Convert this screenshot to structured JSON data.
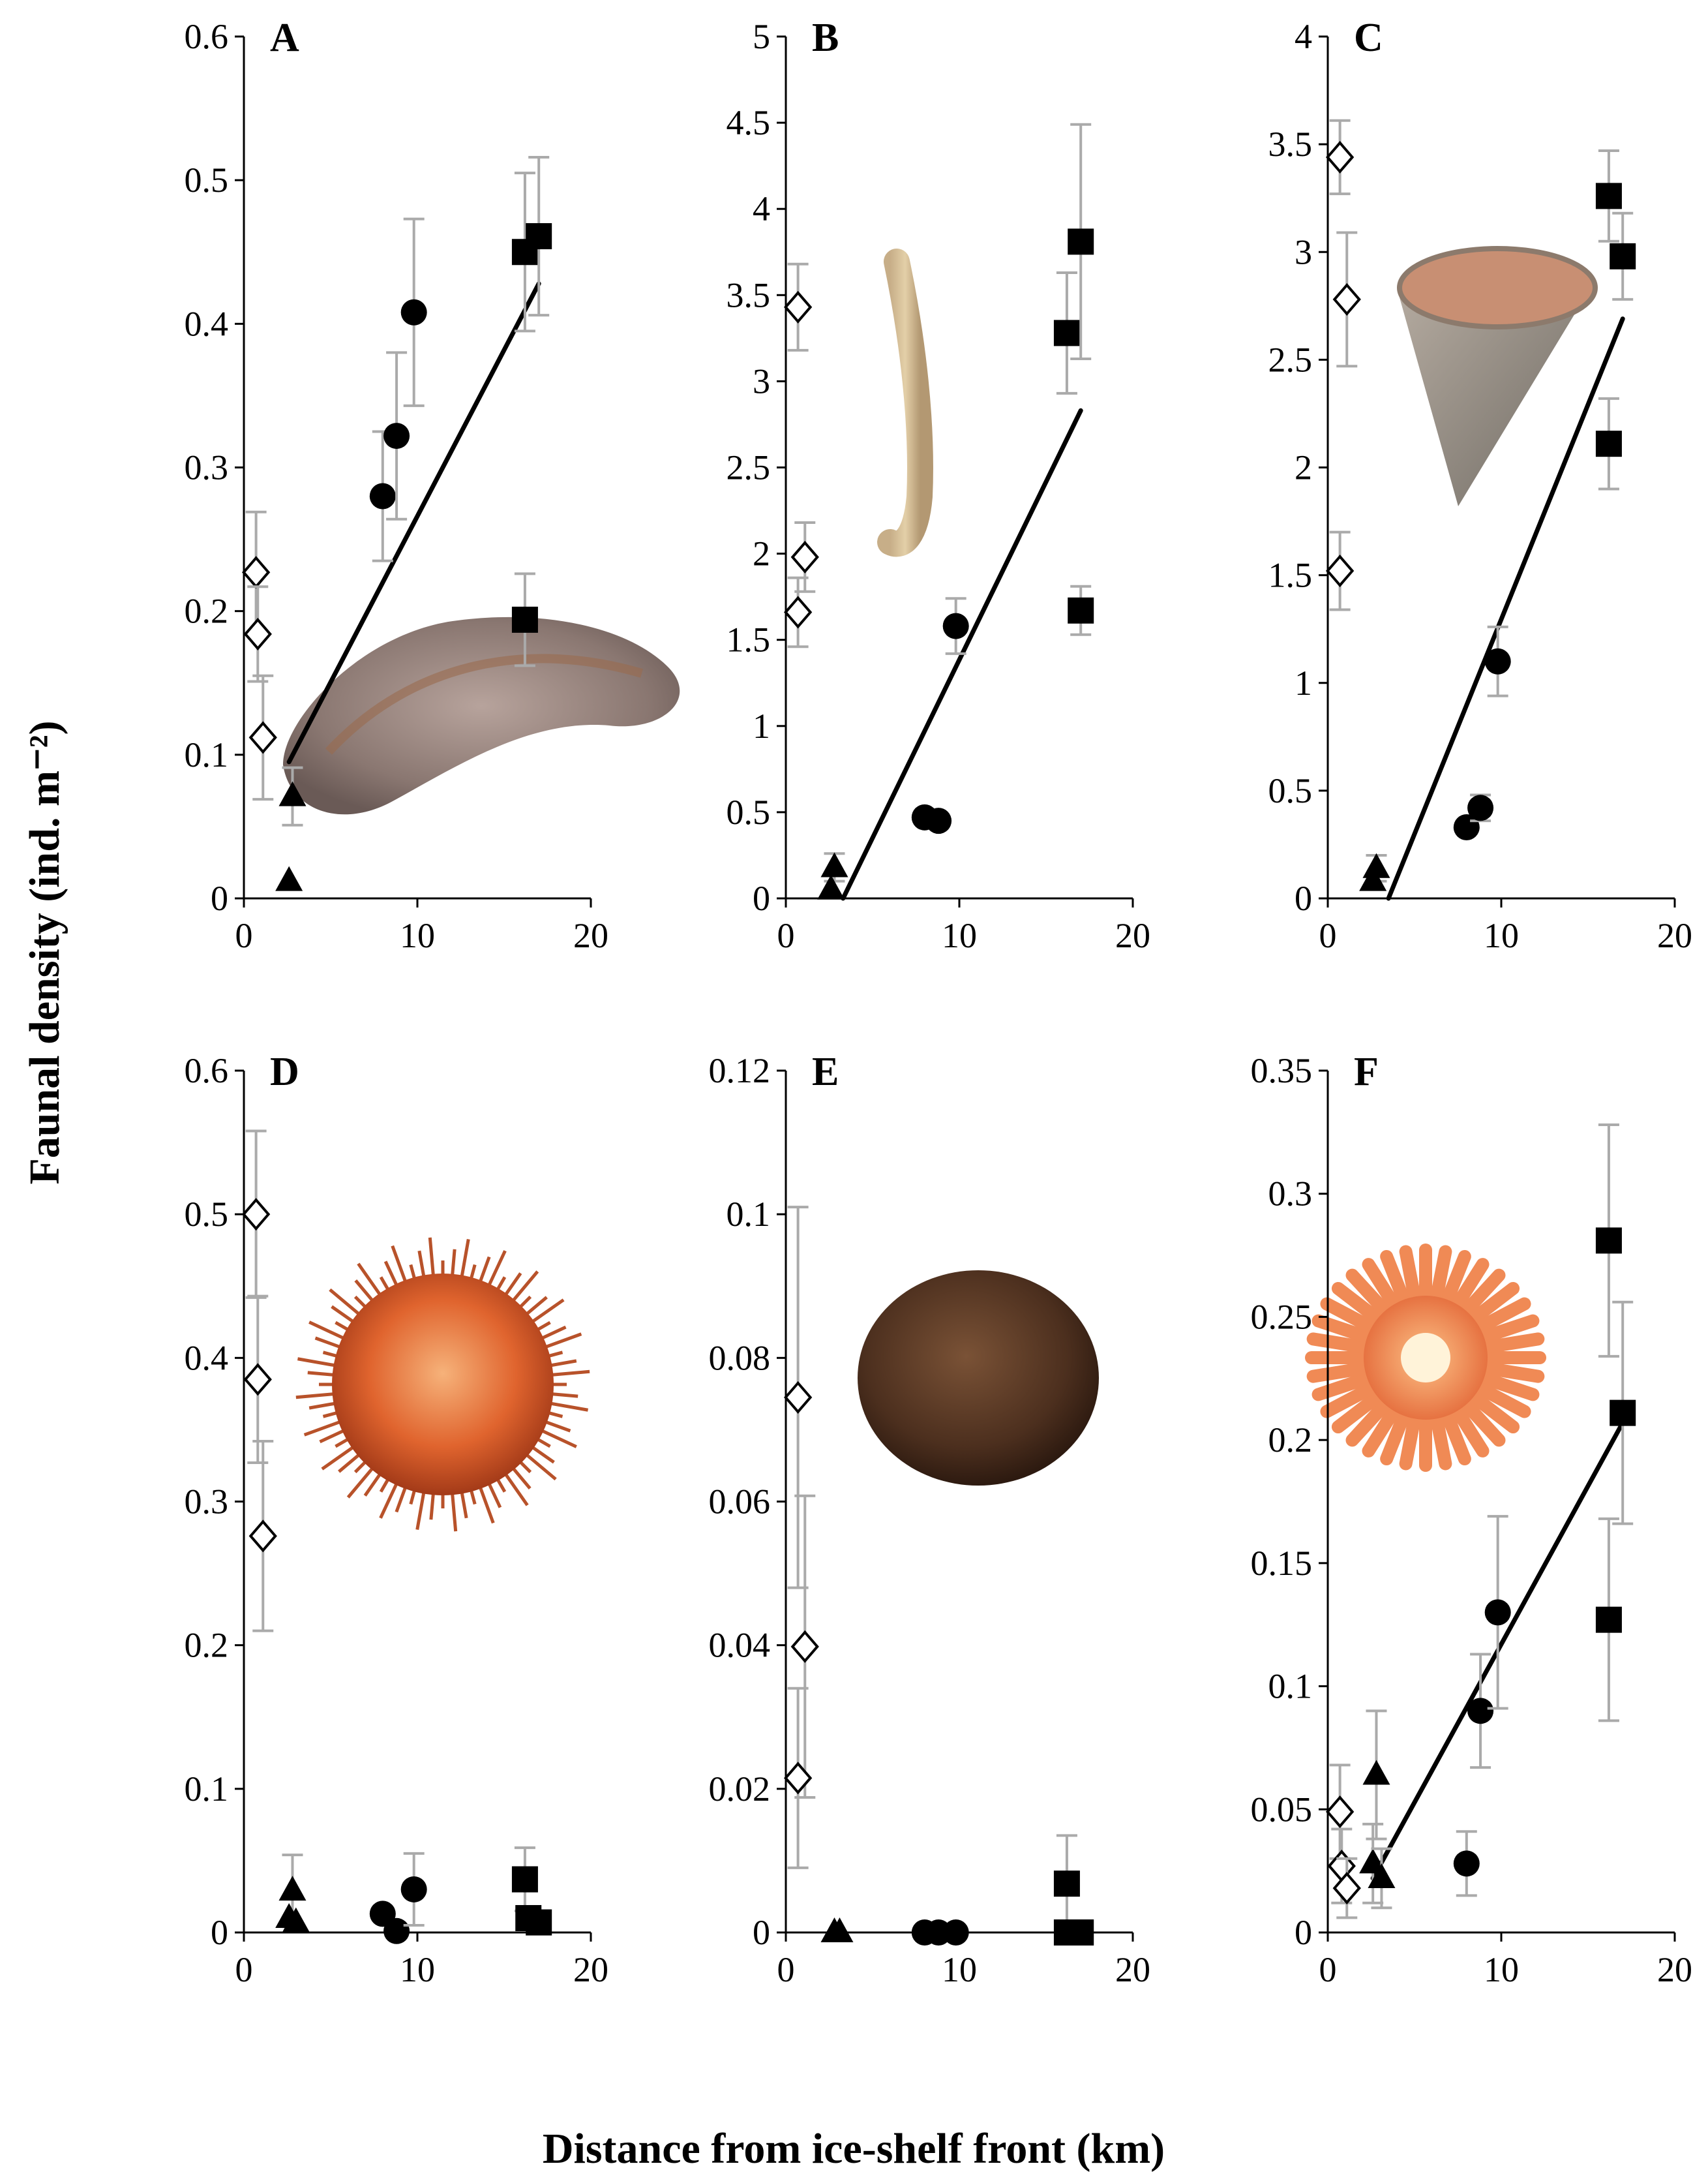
{
  "figure": {
    "ylabel": "Faunal density (ind. m⁻²)",
    "xlabel": "Distance from ice-shelf front (km)"
  },
  "chart_data": [
    {
      "panel": "A",
      "type": "scatter",
      "xlim": [
        0,
        20
      ],
      "xticks": [
        "0",
        "10",
        "20"
      ],
      "ylim": [
        0,
        0.6
      ],
      "yticks": [
        "0",
        "0.1",
        "0.2",
        "0.3",
        "0.4",
        "0.5",
        "0.6"
      ],
      "trendline": {
        "x": [
          2.6,
          17
        ],
        "y": [
          0.095,
          0.428
        ]
      },
      "image": "sea-cucumber",
      "series": [
        {
          "marker": "diamond-open",
          "points": [
            [
              0.7,
              0.227,
              0.042
            ],
            [
              0.8,
              0.184,
              0.033
            ],
            [
              1.1,
              0.112,
              0.043
            ]
          ]
        },
        {
          "marker": "triangle",
          "points": [
            [
              2.8,
              0.071,
              0.02
            ],
            [
              2.6,
              0.012,
              0.0
            ]
          ]
        },
        {
          "marker": "circle",
          "points": [
            [
              8.0,
              0.28,
              0.045
            ],
            [
              8.8,
              0.322,
              0.058
            ],
            [
              9.8,
              0.408,
              0.065
            ]
          ]
        },
        {
          "marker": "square",
          "points": [
            [
              16.2,
              0.45,
              0.055
            ],
            [
              17.0,
              0.461,
              0.055
            ],
            [
              16.2,
              0.194,
              0.032
            ]
          ]
        }
      ]
    },
    {
      "panel": "B",
      "type": "scatter",
      "xlim": [
        0,
        20
      ],
      "xticks": [
        "0",
        "10",
        "20"
      ],
      "ylim": [
        0,
        5
      ],
      "yticks": [
        "0",
        "0.5",
        "1",
        "1.5",
        "2",
        "2.5",
        "3",
        "3.5",
        "4",
        "4.5",
        "5"
      ],
      "trendline": {
        "x": [
          3.3,
          17
        ],
        "y": [
          0.0,
          2.83
        ]
      },
      "image": "tube-worm",
      "series": [
        {
          "marker": "diamond-open",
          "points": [
            [
              0.7,
              3.43,
              0.25
            ],
            [
              1.1,
              1.98,
              0.2
            ],
            [
              0.7,
              1.66,
              0.2
            ]
          ]
        },
        {
          "marker": "triangle",
          "points": [
            [
              2.8,
              0.18,
              0.08
            ],
            [
              2.6,
              0.05,
              0.0
            ]
          ]
        },
        {
          "marker": "circle",
          "points": [
            [
              8.0,
              0.47,
              0.0
            ],
            [
              8.8,
              0.45,
              0.0
            ],
            [
              9.8,
              1.58,
              0.16
            ]
          ]
        },
        {
          "marker": "square",
          "points": [
            [
              16.2,
              3.28,
              0.35
            ],
            [
              17.0,
              3.81,
              0.68
            ],
            [
              17.0,
              1.67,
              0.14
            ]
          ]
        }
      ]
    },
    {
      "panel": "C",
      "type": "scatter",
      "xlim": [
        0,
        20
      ],
      "xticks": [
        "0",
        "10",
        "20"
      ],
      "ylim": [
        0,
        4
      ],
      "yticks": [
        "0",
        "0.5",
        "1",
        "1.5",
        "2",
        "2.5",
        "3",
        "3.5",
        "4"
      ],
      "trendline": {
        "x": [
          3.5,
          17
        ],
        "y": [
          0.0,
          2.69
        ]
      },
      "image": "cup-coral",
      "series": [
        {
          "marker": "diamond-open",
          "points": [
            [
              0.7,
              3.44,
              0.17
            ],
            [
              1.1,
              2.78,
              0.31
            ],
            [
              0.7,
              1.52,
              0.18
            ]
          ]
        },
        {
          "marker": "triangle",
          "points": [
            [
              2.8,
              0.14,
              0.06
            ],
            [
              2.6,
              0.08,
              0.0
            ]
          ]
        },
        {
          "marker": "circle",
          "points": [
            [
              8.0,
              0.33,
              0.0
            ],
            [
              8.8,
              0.42,
              0.06
            ],
            [
              9.8,
              1.1,
              0.16
            ]
          ]
        },
        {
          "marker": "square",
          "points": [
            [
              16.2,
              3.26,
              0.21
            ],
            [
              17.0,
              2.98,
              0.2
            ],
            [
              16.2,
              2.11,
              0.21
            ]
          ]
        }
      ]
    },
    {
      "panel": "D",
      "type": "scatter",
      "xlim": [
        0,
        20
      ],
      "xticks": [
        "0",
        "10",
        "20"
      ],
      "ylim": [
        0,
        0.6
      ],
      "yticks": [
        "0",
        "0.1",
        "0.2",
        "0.3",
        "0.4",
        "0.5",
        "0.6"
      ],
      "image": "sea-urchin",
      "series": [
        {
          "marker": "diamond-open",
          "points": [
            [
              0.7,
              0.5,
              0.058
            ],
            [
              0.8,
              0.385,
              0.058
            ],
            [
              1.1,
              0.276,
              0.066
            ]
          ]
        },
        {
          "marker": "triangle",
          "points": [
            [
              2.8,
              0.029,
              0.025
            ],
            [
              2.6,
              0.01,
              0.0
            ],
            [
              3.0,
              0.007,
              0.0
            ]
          ]
        },
        {
          "marker": "circle",
          "points": [
            [
              8.0,
              0.013,
              0.0
            ],
            [
              8.8,
              0.001,
              0.0
            ],
            [
              9.8,
              0.03,
              0.025
            ]
          ]
        },
        {
          "marker": "square",
          "points": [
            [
              16.2,
              0.037,
              0.022
            ],
            [
              16.4,
              0.01,
              0.0
            ],
            [
              17.0,
              0.007,
              0.0
            ]
          ]
        }
      ]
    },
    {
      "panel": "E",
      "type": "scatter",
      "xlim": [
        0,
        20
      ],
      "xticks": [
        "0",
        "10",
        "20"
      ],
      "ylim": [
        0,
        0.12
      ],
      "yticks": [
        "0",
        "0.02",
        "0.04",
        "0.06",
        "0.08",
        "0.1",
        "0.12"
      ],
      "image": "sponge-ball",
      "series": [
        {
          "marker": "diamond-open",
          "points": [
            [
              0.7,
              0.0745,
              0.0265
            ],
            [
              1.1,
              0.0398,
              0.021
            ],
            [
              0.7,
              0.0215,
              0.0125
            ]
          ]
        },
        {
          "marker": "triangle",
          "points": [
            [
              2.8,
              0.0,
              0.0
            ],
            [
              3.1,
              0.0,
              0.0
            ]
          ]
        },
        {
          "marker": "circle",
          "points": [
            [
              8.0,
              0.0,
              0.0
            ],
            [
              8.8,
              0.0,
              0.0
            ],
            [
              9.8,
              0.0,
              0.0
            ]
          ]
        },
        {
          "marker": "square",
          "points": [
            [
              16.2,
              0.0068,
              0.0067
            ],
            [
              16.2,
              0.0,
              0.0
            ],
            [
              17.0,
              0.0,
              0.0
            ]
          ]
        }
      ]
    },
    {
      "panel": "F",
      "type": "scatter",
      "xlim": [
        0,
        20
      ],
      "xticks": [
        "0",
        "10",
        "20"
      ],
      "ylim": [
        0,
        0.35
      ],
      "yticks": [
        "0",
        "0.05",
        "0.1",
        "0.15",
        "0.2",
        "0.25",
        "0.3",
        "0.35"
      ],
      "trendline": {
        "x": [
          2.6,
          17
        ],
        "y": [
          0.022,
          0.207
        ]
      },
      "image": "sea-anemone",
      "series": [
        {
          "marker": "diamond-open",
          "points": [
            [
              0.7,
              0.049,
              0.019
            ],
            [
              0.8,
              0.027,
              0.015
            ],
            [
              1.1,
              0.018,
              0.012
            ]
          ]
        },
        {
          "marker": "triangle",
          "points": [
            [
              2.8,
              0.064,
              0.026
            ],
            [
              2.6,
              0.028,
              0.016
            ],
            [
              3.1,
              0.022,
              0.012
            ]
          ]
        },
        {
          "marker": "circle",
          "points": [
            [
              8.0,
              0.028,
              0.013
            ],
            [
              8.8,
              0.09,
              0.023
            ],
            [
              9.8,
              0.13,
              0.039
            ]
          ]
        },
        {
          "marker": "square",
          "points": [
            [
              16.2,
              0.281,
              0.047
            ],
            [
              17.0,
              0.211,
              0.045
            ],
            [
              16.2,
              0.127,
              0.041
            ]
          ]
        }
      ]
    }
  ]
}
